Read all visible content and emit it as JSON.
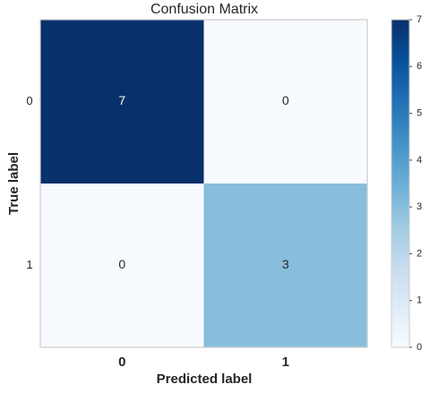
{
  "chart_data": {
    "type": "heatmap",
    "title": "Confusion Matrix",
    "x_label": "Predicted label",
    "y_label": "True label",
    "x_categories": [
      "0",
      "1"
    ],
    "y_categories": [
      "0",
      "1"
    ],
    "values": [
      [
        7,
        0
      ],
      [
        0,
        3
      ]
    ],
    "colormap": "Blues",
    "clim": [
      0,
      7
    ],
    "colorbar_ticks": [
      0,
      1,
      2,
      3,
      4,
      5,
      6,
      7
    ]
  }
}
